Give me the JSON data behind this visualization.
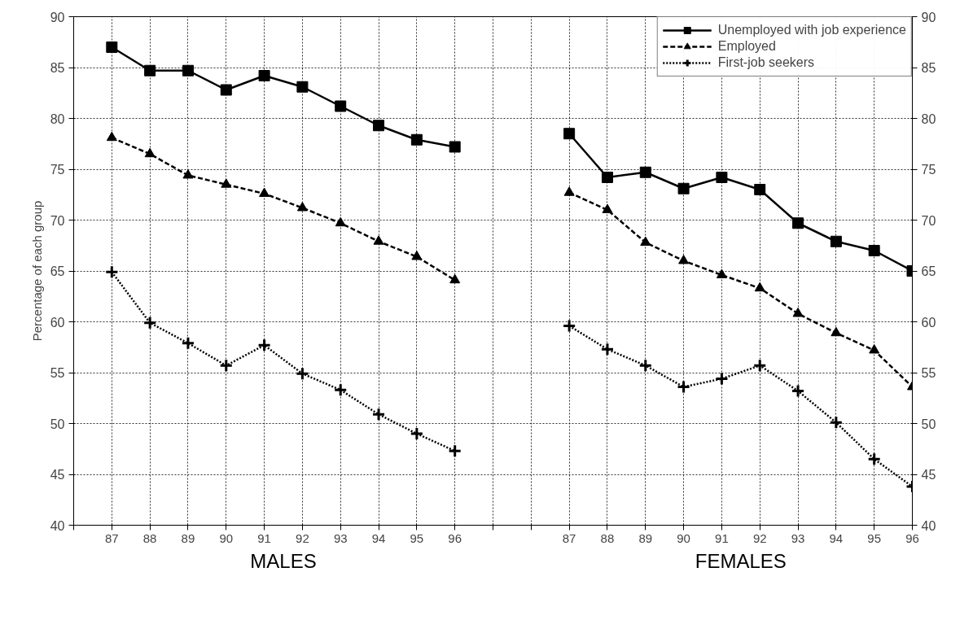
{
  "chart_data": {
    "type": "line",
    "ylabel": "Percentage of each group",
    "categories": [
      "87",
      "88",
      "89",
      "90",
      "91",
      "92",
      "93",
      "94",
      "95",
      "96",
      null,
      null,
      "87",
      "88",
      "89",
      "90",
      "91",
      "92",
      "93",
      "94",
      "95",
      "96"
    ],
    "series": [
      {
        "name": "Unemployed with job experience",
        "color": "#000000",
        "marker": "square",
        "line_style": "solid",
        "values": [
          87,
          84.7,
          84.7,
          82.8,
          84.2,
          83.1,
          81.2,
          79.3,
          77.9,
          77.2,
          null,
          null,
          78.5,
          74.2,
          74.7,
          73.1,
          74.2,
          73.0,
          69.7,
          67.9,
          67.0,
          65.0
        ]
      },
      {
        "name": "Employed",
        "color": "#000000",
        "marker": "triangle",
        "line_style": "dashed",
        "values": [
          78.1,
          76.5,
          74.4,
          73.5,
          72.6,
          71.2,
          69.7,
          67.9,
          66.4,
          64.1,
          null,
          null,
          72.7,
          71.0,
          67.8,
          66.0,
          64.6,
          63.3,
          60.8,
          58.9,
          57.2,
          53.6
        ]
      },
      {
        "name": "First-job seekers",
        "color": "#000000",
        "marker": "cross",
        "line_style": "dotted",
        "values": [
          64.9,
          59.9,
          57.9,
          55.7,
          57.7,
          54.9,
          53.3,
          50.9,
          49.0,
          47.3,
          null,
          null,
          59.6,
          57.3,
          55.7,
          53.6,
          54.4,
          55.7,
          53.2,
          50.1,
          46.5,
          43.8
        ]
      }
    ],
    "ylim": [
      40,
      90
    ],
    "yticks": [
      40,
      45,
      50,
      55,
      60,
      65,
      70,
      75,
      80,
      85,
      90
    ],
    "y2lim": [
      40,
      90
    ],
    "y2ticks": [
      40,
      45,
      50,
      55,
      60,
      65,
      70,
      75,
      80,
      85,
      90
    ],
    "annotations": [
      "MALES",
      "FEMALES"
    ],
    "grid": true,
    "legend": "top right"
  }
}
